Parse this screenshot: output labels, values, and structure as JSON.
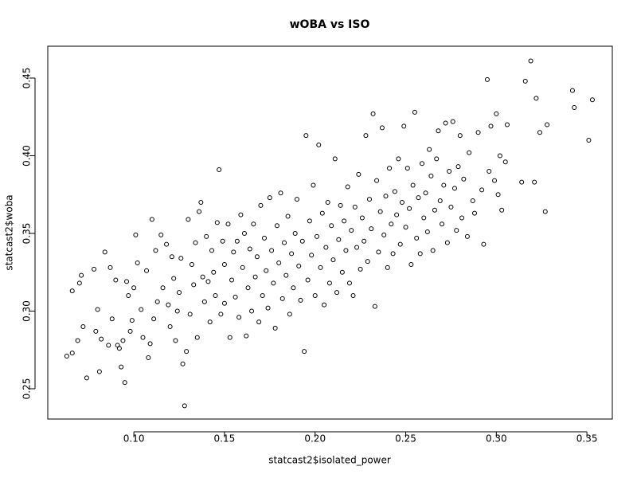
{
  "chart_data": {
    "type": "scatter",
    "title": "wOBA vs ISO",
    "x_label": "statcast2$isolated_power",
    "y_label": "statcast2$woba",
    "color": "#000000",
    "grid": false,
    "xlim": [
      0.0525,
      0.364
    ],
    "ylim": [
      0.2305,
      0.4705
    ],
    "xticks": [
      {
        "value": 0.1,
        "label": "0.10"
      },
      0.15,
      {
        "value": 0.2,
        "label": "0.20"
      },
      0.25,
      {
        "value": 0.3,
        "label": "0.30"
      },
      0.35
    ],
    "yticks": [
      0.25,
      {
        "value": 0.3,
        "label": "0.30"
      },
      0.35,
      {
        "value": 0.4,
        "label": "0.40"
      },
      0.45
    ],
    "x": [
      0.063,
      0.066,
      0.066,
      0.069,
      0.07,
      0.071,
      0.072,
      0.074,
      0.078,
      0.079,
      0.08,
      0.081,
      0.082,
      0.084,
      0.086,
      0.087,
      0.088,
      0.09,
      0.091,
      0.092,
      0.093,
      0.094,
      0.095,
      0.096,
      0.097,
      0.098,
      0.099,
      0.1,
      0.101,
      0.102,
      0.104,
      0.105,
      0.107,
      0.108,
      0.109,
      0.11,
      0.111,
      0.112,
      0.113,
      0.115,
      0.116,
      0.118,
      0.119,
      0.12,
      0.121,
      0.122,
      0.123,
      0.124,
      0.125,
      0.126,
      0.127,
      0.128,
      0.129,
      0.13,
      0.131,
      0.132,
      0.133,
      0.134,
      0.135,
      0.136,
      0.137,
      0.138,
      0.139,
      0.14,
      0.141,
      0.142,
      0.143,
      0.144,
      0.145,
      0.146,
      0.147,
      0.148,
      0.149,
      0.15,
      0.15,
      0.152,
      0.153,
      0.154,
      0.155,
      0.156,
      0.157,
      0.158,
      0.159,
      0.16,
      0.161,
      0.162,
      0.163,
      0.164,
      0.165,
      0.166,
      0.167,
      0.168,
      0.169,
      0.17,
      0.171,
      0.172,
      0.173,
      0.174,
      0.175,
      0.176,
      0.177,
      0.178,
      0.179,
      0.18,
      0.181,
      0.182,
      0.183,
      0.184,
      0.185,
      0.186,
      0.187,
      0.188,
      0.189,
      0.19,
      0.191,
      0.192,
      0.193,
      0.194,
      0.195,
      0.196,
      0.197,
      0.198,
      0.199,
      0.2,
      0.201,
      0.202,
      0.203,
      0.204,
      0.205,
      0.206,
      0.207,
      0.208,
      0.209,
      0.21,
      0.211,
      0.212,
      0.213,
      0.214,
      0.215,
      0.216,
      0.217,
      0.218,
      0.219,
      0.22,
      0.221,
      0.222,
      0.223,
      0.224,
      0.225,
      0.226,
      0.227,
      0.228,
      0.229,
      0.23,
      0.231,
      0.232,
      0.233,
      0.234,
      0.235,
      0.236,
      0.237,
      0.238,
      0.239,
      0.24,
      0.241,
      0.242,
      0.243,
      0.244,
      0.245,
      0.246,
      0.247,
      0.248,
      0.249,
      0.25,
      0.251,
      0.252,
      0.253,
      0.254,
      0.255,
      0.256,
      0.257,
      0.258,
      0.259,
      0.26,
      0.261,
      0.262,
      0.263,
      0.264,
      0.265,
      0.266,
      0.267,
      0.268,
      0.269,
      0.27,
      0.271,
      0.272,
      0.273,
      0.274,
      0.275,
      0.276,
      0.277,
      0.278,
      0.279,
      0.28,
      0.281,
      0.282,
      0.284,
      0.285,
      0.287,
      0.288,
      0.29,
      0.292,
      0.293,
      0.295,
      0.296,
      0.297,
      0.299,
      0.3,
      0.301,
      0.302,
      0.303,
      0.305,
      0.306,
      0.314,
      0.316,
      0.319,
      0.321,
      0.322,
      0.324,
      0.327,
      0.328,
      0.342,
      0.343,
      0.351,
      0.353
    ],
    "values": [
      0.271,
      0.273,
      0.313,
      0.281,
      0.318,
      0.323,
      0.29,
      0.257,
      0.327,
      0.287,
      0.301,
      0.261,
      0.282,
      0.338,
      0.278,
      0.328,
      0.295,
      0.32,
      0.278,
      0.276,
      0.264,
      0.281,
      0.254,
      0.319,
      0.31,
      0.287,
      0.294,
      0.315,
      0.349,
      0.331,
      0.301,
      0.283,
      0.326,
      0.27,
      0.279,
      0.359,
      0.295,
      0.339,
      0.306,
      0.349,
      0.315,
      0.343,
      0.304,
      0.29,
      0.335,
      0.321,
      0.281,
      0.3,
      0.312,
      0.334,
      0.266,
      0.239,
      0.274,
      0.359,
      0.298,
      0.33,
      0.317,
      0.344,
      0.283,
      0.364,
      0.37,
      0.322,
      0.306,
      0.348,
      0.319,
      0.293,
      0.339,
      0.325,
      0.31,
      0.357,
      0.391,
      0.298,
      0.345,
      0.33,
      0.305,
      0.356,
      0.283,
      0.32,
      0.338,
      0.309,
      0.345,
      0.296,
      0.362,
      0.328,
      0.35,
      0.284,
      0.315,
      0.34,
      0.3,
      0.356,
      0.322,
      0.335,
      0.293,
      0.368,
      0.31,
      0.347,
      0.326,
      0.302,
      0.373,
      0.339,
      0.318,
      0.289,
      0.355,
      0.331,
      0.376,
      0.308,
      0.344,
      0.323,
      0.361,
      0.298,
      0.337,
      0.315,
      0.35,
      0.372,
      0.329,
      0.307,
      0.345,
      0.274,
      0.413,
      0.32,
      0.358,
      0.336,
      0.381,
      0.31,
      0.348,
      0.407,
      0.328,
      0.363,
      0.304,
      0.341,
      0.37,
      0.318,
      0.355,
      0.333,
      0.398,
      0.312,
      0.346,
      0.368,
      0.325,
      0.358,
      0.339,
      0.38,
      0.318,
      0.352,
      0.31,
      0.367,
      0.341,
      0.388,
      0.327,
      0.36,
      0.345,
      0.413,
      0.332,
      0.372,
      0.353,
      0.427,
      0.303,
      0.384,
      0.338,
      0.364,
      0.418,
      0.349,
      0.374,
      0.328,
      0.392,
      0.356,
      0.337,
      0.377,
      0.362,
      0.398,
      0.343,
      0.37,
      0.419,
      0.354,
      0.392,
      0.366,
      0.33,
      0.381,
      0.428,
      0.347,
      0.373,
      0.337,
      0.395,
      0.36,
      0.376,
      0.351,
      0.404,
      0.387,
      0.339,
      0.365,
      0.398,
      0.416,
      0.371,
      0.356,
      0.381,
      0.421,
      0.344,
      0.39,
      0.367,
      0.422,
      0.379,
      0.352,
      0.393,
      0.413,
      0.36,
      0.385,
      0.348,
      0.402,
      0.371,
      0.363,
      0.415,
      0.378,
      0.343,
      0.449,
      0.39,
      0.419,
      0.384,
      0.427,
      0.375,
      0.4,
      0.365,
      0.396,
      0.42,
      0.383,
      0.448,
      0.461,
      0.383,
      0.437,
      0.415,
      0.364,
      0.42,
      0.442,
      0.431,
      0.41,
      0.436
    ]
  }
}
